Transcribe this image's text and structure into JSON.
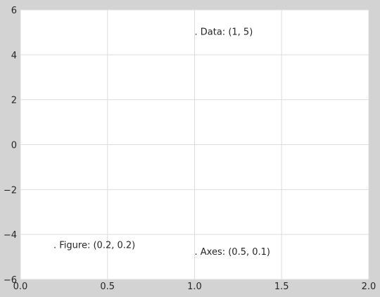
{
  "chart_data": {
    "type": "scatter",
    "title": "",
    "xlabel": "",
    "ylabel": "",
    "xlim": [
      0,
      2
    ],
    "ylim": [
      -6,
      6
    ],
    "x_ticks": [
      "0.0",
      "0.5",
      "1.0",
      "1.5",
      "2.0"
    ],
    "y_ticks": [
      "6",
      "4",
      "2",
      "0",
      "−2",
      "−4",
      "−6"
    ],
    "grid": true,
    "annotations": [
      {
        "text": ". Data: (1, 5)",
        "x": 1.0,
        "y": 5.0
      },
      {
        "text": ". Axes: (0.5, 0.1)",
        "x": 1.0,
        "y": -4.8
      },
      {
        "text": ". Figure: (0.2, 0.2)",
        "x": 0.19,
        "y": -4.5
      }
    ]
  },
  "colors": {
    "figure_background": "#d3d3d3",
    "axes_background": "#ffffff",
    "grid": "#dddddd",
    "text": "#262626"
  }
}
